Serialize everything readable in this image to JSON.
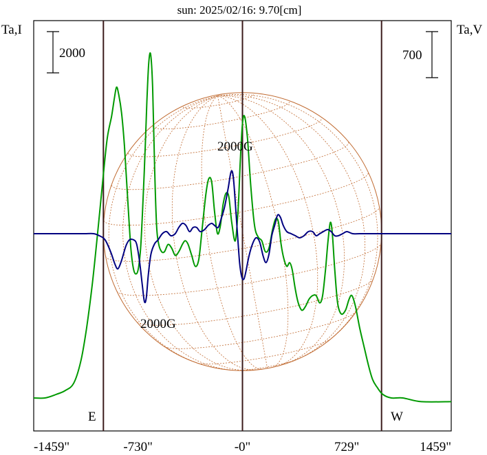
{
  "chart_data": {
    "type": "line",
    "title": "sun: 2025/02/16: 9.70[cm]",
    "title_color": "#1a1a7a",
    "left_axis_label": "Ta,I",
    "right_axis_label": "Ta,V",
    "left_scale_value": "2000",
    "right_scale_value": "700",
    "x_tick_labels": [
      "-1459\"",
      "-730\"",
      "-0\"",
      "729\"",
      "1459\""
    ],
    "x_tick_values": [
      -1459,
      -730,
      0,
      729,
      1459
    ],
    "xlim": [
      -1459,
      1459
    ],
    "limb_markers": [
      {
        "label": "E",
        "x": -972
      },
      {
        "label": "W",
        "x": 972
      }
    ],
    "annotations": [
      "2000G",
      "2000G"
    ],
    "colors": {
      "intensity": "#009900",
      "polarization": "#000080",
      "disk": "#c06a30",
      "limb": "#3a1a1a"
    },
    "series": [
      {
        "key": "intensity",
        "color": "#009900",
        "values": [
          [
            -1459,
            0.03
          ],
          [
            -1380,
            0.03
          ],
          [
            -1300,
            0.04
          ],
          [
            -1240,
            0.05
          ],
          [
            -1180,
            0.07
          ],
          [
            -1130,
            0.13
          ],
          [
            -1090,
            0.22
          ],
          [
            -1050,
            0.34
          ],
          [
            -1010,
            0.49
          ],
          [
            -975,
            0.63
          ],
          [
            -945,
            0.74
          ],
          [
            -915,
            0.8
          ],
          [
            -895,
            0.85
          ],
          [
            -880,
            0.88
          ],
          [
            -865,
            0.86
          ],
          [
            -845,
            0.81
          ],
          [
            -825,
            0.72
          ],
          [
            -800,
            0.56
          ],
          [
            -780,
            0.44
          ],
          [
            -760,
            0.38
          ],
          [
            -740,
            0.37
          ],
          [
            -725,
            0.39
          ],
          [
            -710,
            0.45
          ],
          [
            -695,
            0.57
          ],
          [
            -680,
            0.71
          ],
          [
            -668,
            0.84
          ],
          [
            -655,
            0.945
          ],
          [
            -642,
            0.97
          ],
          [
            -628,
            0.88
          ],
          [
            -614,
            0.66
          ],
          [
            -600,
            0.5
          ],
          [
            -585,
            0.45
          ],
          [
            -565,
            0.43
          ],
          [
            -545,
            0.43
          ],
          [
            -520,
            0.45
          ],
          [
            -495,
            0.44
          ],
          [
            -470,
            0.42
          ],
          [
            -445,
            0.43
          ],
          [
            -420,
            0.45
          ],
          [
            -400,
            0.46
          ],
          [
            -380,
            0.45
          ],
          [
            -355,
            0.42
          ],
          [
            -330,
            0.39
          ],
          [
            -305,
            0.41
          ],
          [
            -280,
            0.5
          ],
          [
            -255,
            0.59
          ],
          [
            -235,
            0.63
          ],
          [
            -215,
            0.62
          ],
          [
            -195,
            0.54
          ],
          [
            -175,
            0.48
          ],
          [
            -155,
            0.5
          ],
          [
            -135,
            0.56
          ],
          [
            -115,
            0.59
          ],
          [
            -95,
            0.58
          ],
          [
            -75,
            0.51
          ],
          [
            -50,
            0.46
          ],
          [
            -30,
            0.55
          ],
          [
            -15,
            0.68
          ],
          [
            0,
            0.78
          ],
          [
            15,
            0.8
          ],
          [
            35,
            0.74
          ],
          [
            60,
            0.6
          ],
          [
            85,
            0.5
          ],
          [
            110,
            0.47
          ],
          [
            135,
            0.46
          ],
          [
            160,
            0.43
          ],
          [
            185,
            0.44
          ],
          [
            210,
            0.49
          ],
          [
            232,
            0.52
          ],
          [
            252,
            0.51
          ],
          [
            270,
            0.45
          ],
          [
            290,
            0.41
          ],
          [
            310,
            0.39
          ],
          [
            330,
            0.4
          ],
          [
            348,
            0.38
          ],
          [
            368,
            0.33
          ],
          [
            390,
            0.29
          ],
          [
            415,
            0.27
          ],
          [
            440,
            0.28
          ],
          [
            465,
            0.3
          ],
          [
            490,
            0.31
          ],
          [
            515,
            0.31
          ],
          [
            540,
            0.29
          ],
          [
            560,
            0.31
          ],
          [
            580,
            0.38
          ],
          [
            598,
            0.46
          ],
          [
            614,
            0.51
          ],
          [
            628,
            0.48
          ],
          [
            645,
            0.38
          ],
          [
            665,
            0.29
          ],
          [
            690,
            0.26
          ],
          [
            720,
            0.27
          ],
          [
            745,
            0.3
          ],
          [
            765,
            0.31
          ],
          [
            790,
            0.28
          ],
          [
            820,
            0.22
          ],
          [
            850,
            0.17
          ],
          [
            880,
            0.12
          ],
          [
            910,
            0.08
          ],
          [
            940,
            0.06
          ],
          [
            980,
            0.04
          ],
          [
            1040,
            0.03
          ],
          [
            1120,
            0.03
          ],
          [
            1250,
            0.02
          ],
          [
            1459,
            0.02
          ]
        ]
      },
      {
        "key": "polarization",
        "color": "#000080",
        "values": [
          [
            -1459,
            0.0
          ],
          [
            -1400,
            0.0
          ],
          [
            -1340,
            0.0
          ],
          [
            -1280,
            0.0
          ],
          [
            -1220,
            0.0
          ],
          [
            -1160,
            0.0
          ],
          [
            -1100,
            0.0
          ],
          [
            -1040,
            0.0
          ],
          [
            -1000,
            -0.01
          ],
          [
            -960,
            -0.03
          ],
          [
            -920,
            -0.09
          ],
          [
            -890,
            -0.15
          ],
          [
            -870,
            -0.17
          ],
          [
            -845,
            -0.13
          ],
          [
            -815,
            -0.06
          ],
          [
            -790,
            -0.03
          ],
          [
            -760,
            -0.03
          ],
          [
            -740,
            -0.05
          ],
          [
            -720,
            -0.13
          ],
          [
            -700,
            -0.25
          ],
          [
            -685,
            -0.33
          ],
          [
            -672,
            -0.31
          ],
          [
            -658,
            -0.2
          ],
          [
            -640,
            -0.1
          ],
          [
            -615,
            -0.05
          ],
          [
            -590,
            -0.03
          ],
          [
            -560,
            0.0
          ],
          [
            -530,
            0.01
          ],
          [
            -500,
            -0.01
          ],
          [
            -470,
            0.0
          ],
          [
            -445,
            0.03
          ],
          [
            -420,
            0.05
          ],
          [
            -395,
            0.04
          ],
          [
            -370,
            0.01
          ],
          [
            -345,
            0.03
          ],
          [
            -320,
            0.03
          ],
          [
            -295,
            0.01
          ],
          [
            -265,
            0.02
          ],
          [
            -240,
            0.04
          ],
          [
            -215,
            0.05
          ],
          [
            -195,
            0.04
          ],
          [
            -170,
            0.03
          ],
          [
            -150,
            0.07
          ],
          [
            -125,
            0.13
          ],
          [
            -100,
            0.22
          ],
          [
            -80,
            0.3
          ],
          [
            -65,
            0.28
          ],
          [
            -50,
            0.15
          ],
          [
            -35,
            0.0
          ],
          [
            -20,
            -0.14
          ],
          [
            -5,
            -0.21
          ],
          [
            10,
            -0.22
          ],
          [
            25,
            -0.18
          ],
          [
            45,
            -0.11
          ],
          [
            70,
            -0.05
          ],
          [
            95,
            -0.02
          ],
          [
            120,
            -0.04
          ],
          [
            145,
            -0.11
          ],
          [
            165,
            -0.14
          ],
          [
            185,
            -0.1
          ],
          [
            205,
            -0.01
          ],
          [
            225,
            0.04
          ],
          [
            245,
            0.09
          ],
          [
            265,
            0.08
          ],
          [
            285,
            0.04
          ],
          [
            310,
            0.01
          ],
          [
            340,
            0.0
          ],
          [
            370,
            -0.01
          ],
          [
            400,
            -0.02
          ],
          [
            430,
            -0.01
          ],
          [
            460,
            0.01
          ],
          [
            490,
            0.01
          ],
          [
            515,
            -0.01
          ],
          [
            540,
            0.0
          ],
          [
            565,
            0.01
          ],
          [
            595,
            0.02
          ],
          [
            620,
            0.01
          ],
          [
            645,
            -0.01
          ],
          [
            670,
            -0.01
          ],
          [
            700,
            0.0
          ],
          [
            730,
            0.01
          ],
          [
            770,
            0.0
          ],
          [
            820,
            0.0
          ],
          [
            880,
            0.0
          ],
          [
            940,
            0.0
          ],
          [
            1000,
            0.0
          ],
          [
            1060,
            0.0
          ],
          [
            1120,
            0.0
          ],
          [
            1180,
            0.0
          ],
          [
            1240,
            0.0
          ],
          [
            1300,
            0.0
          ],
          [
            1380,
            0.0
          ],
          [
            1459,
            0.0
          ]
        ]
      }
    ],
    "disk_grid": true,
    "grid": false
  }
}
